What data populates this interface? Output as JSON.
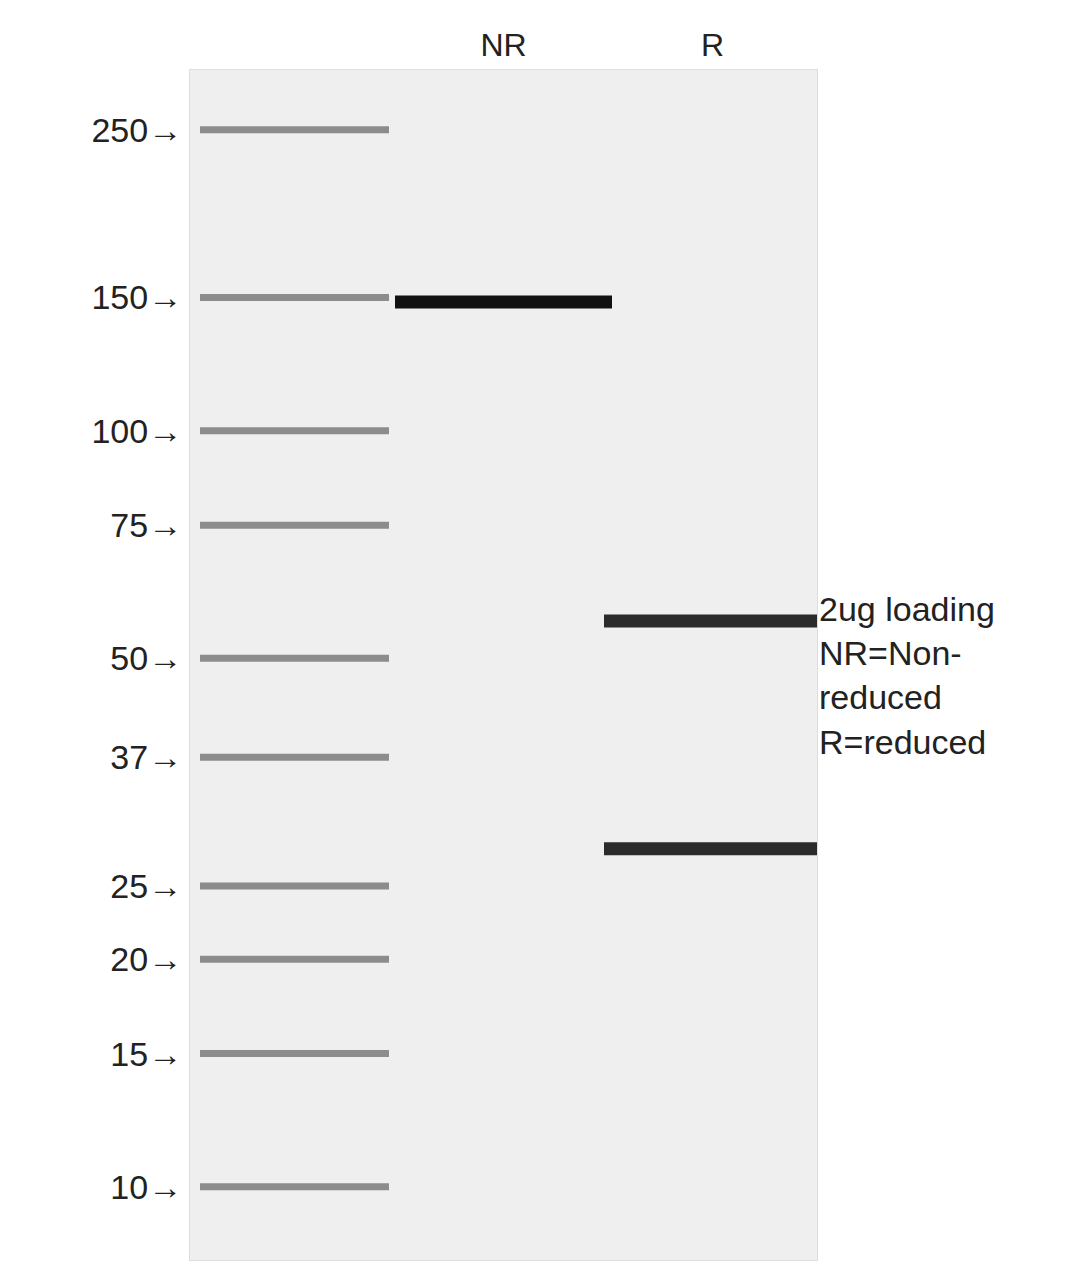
{
  "chart_data": {
    "type": "gel",
    "categories": [
      null,
      "NR",
      "R"
    ],
    "bands": [
      [
        250,
        150,
        100,
        75,
        50,
        37,
        25,
        20,
        15,
        10
      ],
      [
        148
      ],
      [
        56,
        28
      ]
    ],
    "colors": [
      "#8c8c8c",
      "#111111",
      "#2b2b2b"
    ],
    "ylim": [
      8,
      300
    ],
    "log": "y",
    "yticks": [
      {
        "value": 250,
        "label": "250→"
      },
      {
        "value": 150,
        "label": "150→"
      },
      {
        "value": 100,
        "label": "100→"
      },
      {
        "value": 75,
        "label": "75→"
      },
      {
        "value": 50,
        "label": "50→"
      },
      {
        "value": 37,
        "label": "37→"
      },
      {
        "value": 25,
        "label": "25→"
      },
      {
        "value": 20,
        "label": "20→"
      },
      {
        "value": 15,
        "label": "15→"
      },
      {
        "value": 10,
        "label": "10→"
      }
    ],
    "annotation": [
      "2ug loading",
      "NR=Non-",
      "reduced",
      "R=reduced"
    ],
    "grid": false
  }
}
